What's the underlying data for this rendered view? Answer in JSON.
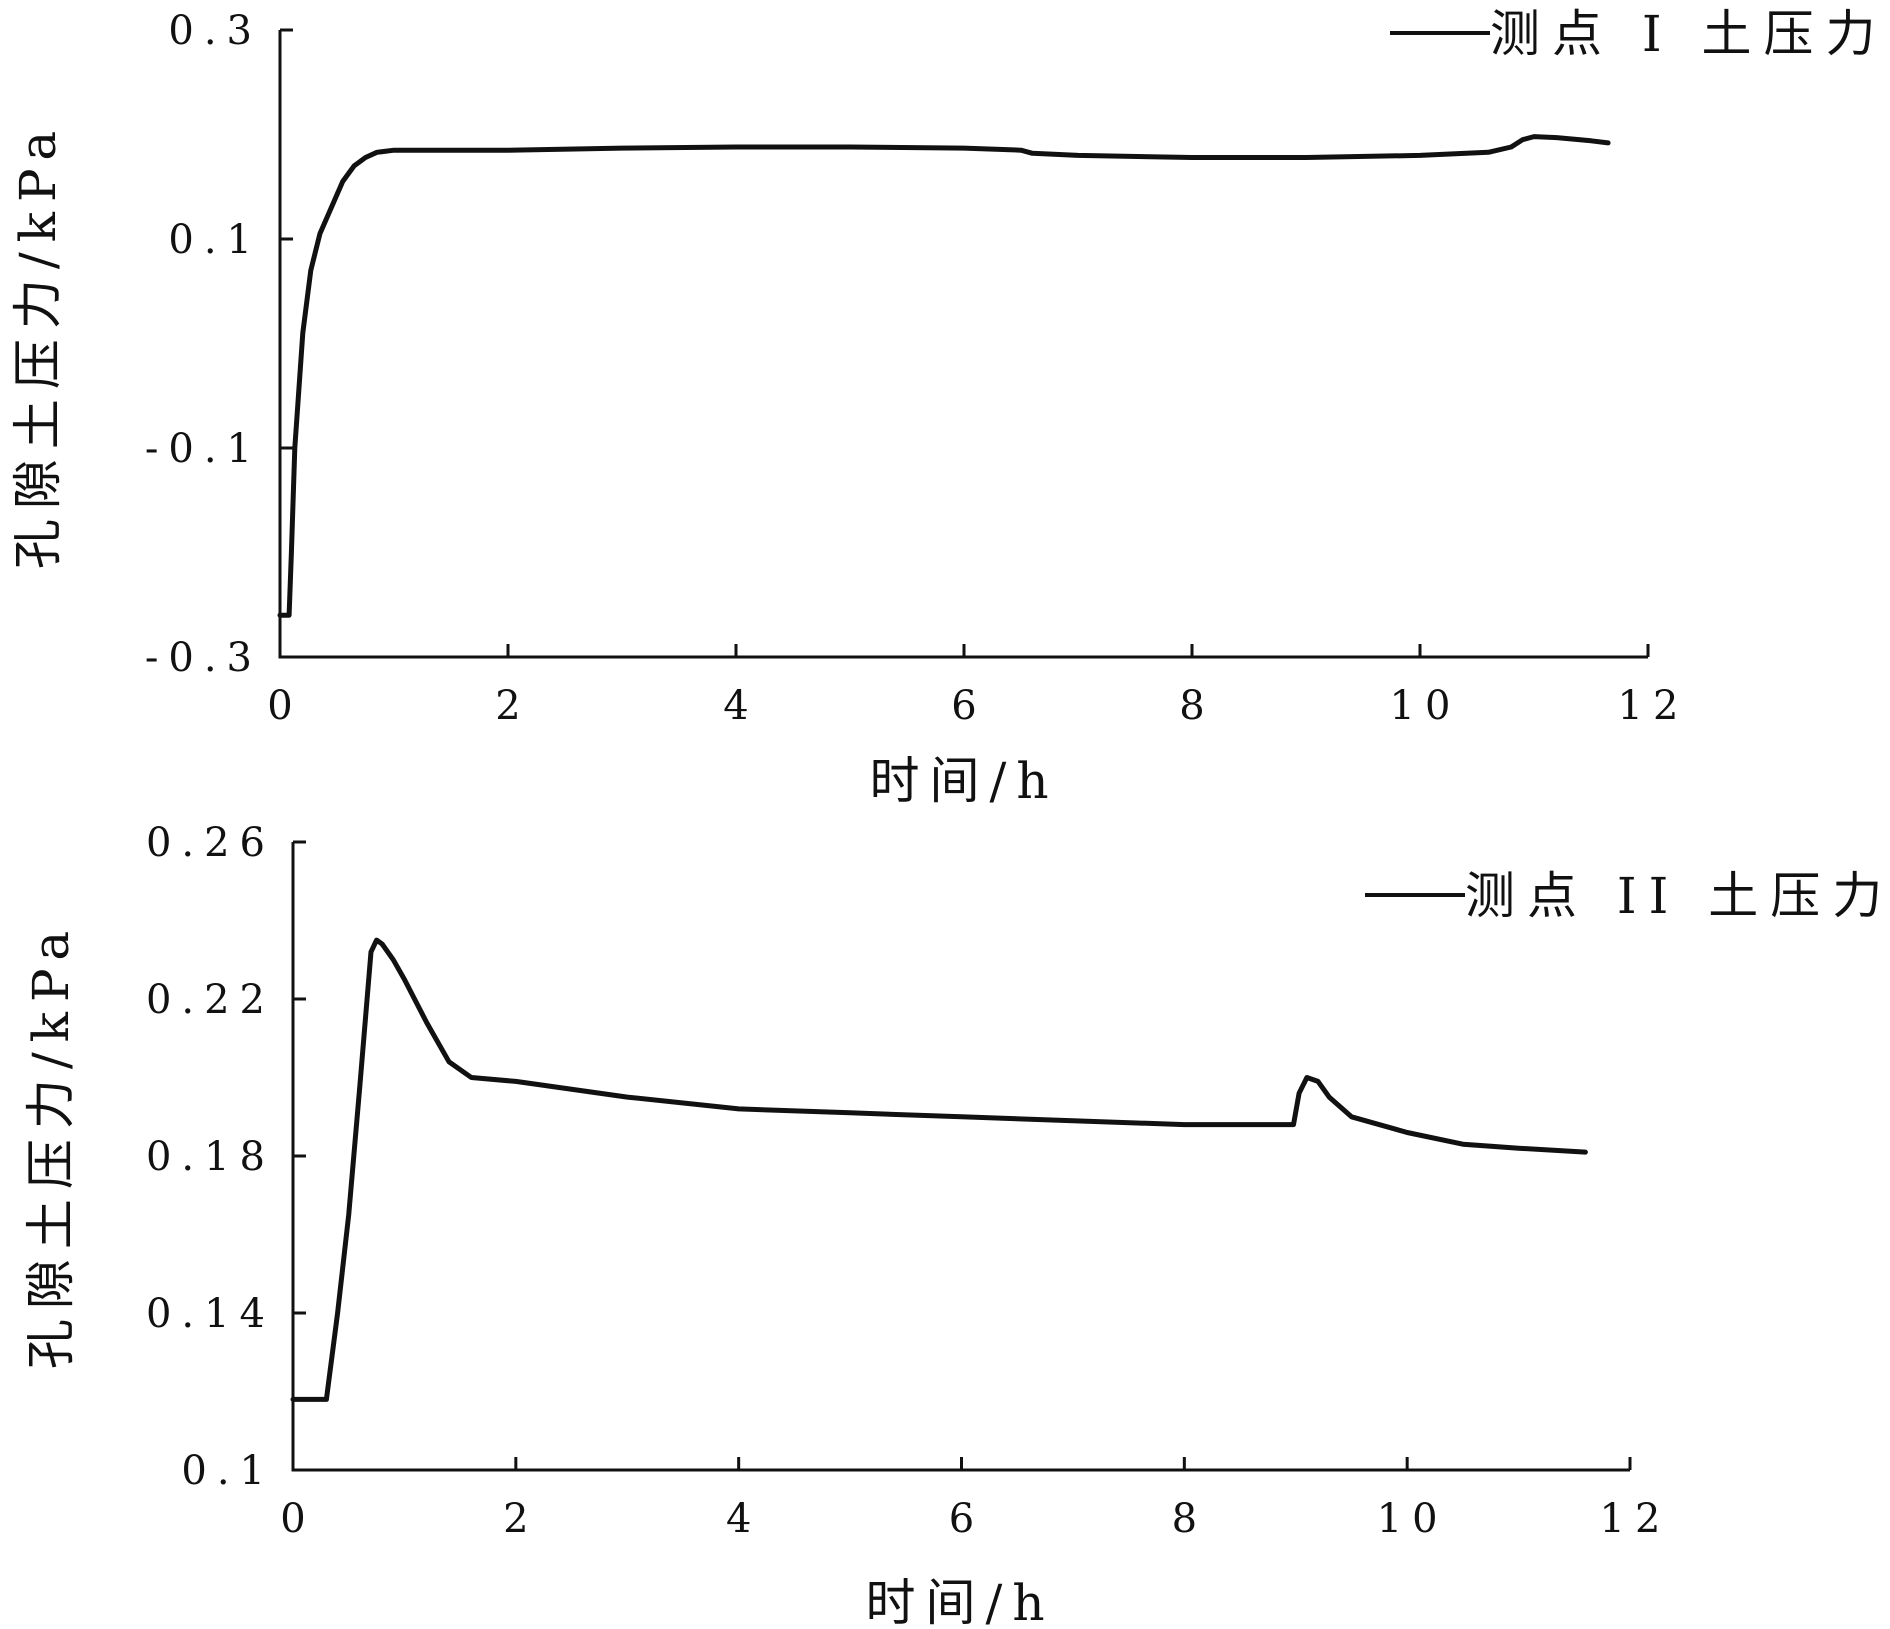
{
  "chart_data": [
    {
      "type": "line",
      "xlabel": "时间/h",
      "ylabel": "孔隙土压力/kPa",
      "xlim": [
        0,
        12
      ],
      "ylim": [
        -0.3,
        0.3
      ],
      "x_ticks": [
        0,
        2,
        4,
        6,
        8,
        10,
        12
      ],
      "x_tick_labels": [
        "0",
        "2",
        "4",
        "6",
        "8",
        "10",
        "12"
      ],
      "y_ticks": [
        -0.3,
        -0.1,
        0.1,
        0.3
      ],
      "y_tick_labels": [
        "-0.3",
        "-0.1",
        "0.1",
        "0.3"
      ],
      "legend_position": "top-right",
      "grid": false,
      "series": [
        {
          "name": "测点 I 土压力",
          "color": "#111111",
          "x": [
            0,
            0.08,
            0.1,
            0.13,
            0.2,
            0.27,
            0.35,
            0.45,
            0.55,
            0.65,
            0.75,
            0.85,
            1.0,
            1.5,
            2.0,
            3.0,
            4.0,
            5.0,
            6.0,
            6.5,
            6.6,
            7.0,
            8.0,
            9.0,
            10.0,
            10.6,
            10.8,
            10.9,
            11.0,
            11.2,
            11.5,
            11.65
          ],
          "y": [
            -0.26,
            -0.26,
            -0.2,
            -0.1,
            0.01,
            0.07,
            0.105,
            0.13,
            0.155,
            0.17,
            0.178,
            0.183,
            0.185,
            0.185,
            0.185,
            0.187,
            0.188,
            0.188,
            0.187,
            0.185,
            0.182,
            0.18,
            0.178,
            0.178,
            0.18,
            0.183,
            0.188,
            0.195,
            0.198,
            0.197,
            0.194,
            0.192
          ]
        }
      ]
    },
    {
      "type": "line",
      "xlabel": "时间/h",
      "ylabel": "孔隙土压力/kPa",
      "xlim": [
        0,
        12
      ],
      "ylim": [
        0.1,
        0.26
      ],
      "x_ticks": [
        0,
        2,
        4,
        6,
        8,
        10,
        12
      ],
      "x_tick_labels": [
        "0",
        "2",
        "4",
        "6",
        "8",
        "10",
        "12"
      ],
      "y_ticks": [
        0.1,
        0.14,
        0.18,
        0.22,
        0.26
      ],
      "y_tick_labels": [
        "0.1",
        "0.14",
        "0.18",
        "0.22",
        "0.26"
      ],
      "legend_position": "top-right",
      "grid": false,
      "series": [
        {
          "name": "测点 II 土压力",
          "color": "#111111",
          "x": [
            0,
            0.3,
            0.4,
            0.5,
            0.6,
            0.7,
            0.75,
            0.8,
            0.9,
            1.0,
            1.2,
            1.4,
            1.6,
            2.0,
            3.0,
            4.0,
            5.0,
            6.0,
            7.0,
            8.0,
            8.98,
            9.03,
            9.1,
            9.2,
            9.3,
            9.5,
            10.0,
            10.5,
            11.0,
            11.6
          ],
          "y": [
            0.118,
            0.118,
            0.14,
            0.165,
            0.198,
            0.232,
            0.235,
            0.234,
            0.23,
            0.225,
            0.214,
            0.204,
            0.2,
            0.199,
            0.195,
            0.192,
            0.191,
            0.19,
            0.189,
            0.188,
            0.188,
            0.196,
            0.2,
            0.199,
            0.195,
            0.19,
            0.186,
            0.183,
            0.182,
            0.181
          ]
        }
      ]
    }
  ]
}
